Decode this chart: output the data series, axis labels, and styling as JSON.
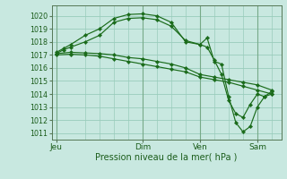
{
  "background_color": "#c8e8e0",
  "grid_color": "#99ccbb",
  "line_color": "#1a6b1a",
  "marker_color": "#1a6b1a",
  "xlabel": "Pression niveau de la mer( hPa )",
  "ylim": [
    1010.5,
    1020.8
  ],
  "yticks": [
    1011,
    1012,
    1013,
    1014,
    1015,
    1016,
    1017,
    1018,
    1019,
    1020
  ],
  "xtick_labels": [
    "Jeu",
    "Dim",
    "Ven",
    "Sam"
  ],
  "xtick_positions": [
    2,
    38,
    62,
    86
  ],
  "xlim": [
    0,
    96
  ],
  "vlines": [
    2,
    14,
    20,
    26,
    32,
    38,
    44,
    50,
    56,
    62,
    68,
    74,
    80,
    86,
    92
  ],
  "lines": [
    {
      "x": [
        2,
        5,
        8,
        14,
        20,
        26,
        32,
        38,
        44,
        50,
        56,
        62,
        65,
        68,
        71,
        74,
        77,
        80,
        83,
        86,
        89,
        92
      ],
      "y": [
        1017.2,
        1017.5,
        1017.8,
        1018.5,
        1019.0,
        1019.8,
        1020.1,
        1020.15,
        1020.0,
        1019.5,
        1018.0,
        1017.8,
        1018.3,
        1016.5,
        1016.3,
        1013.8,
        1011.8,
        1011.1,
        1011.5,
        1013.0,
        1013.8,
        1014.0
      ]
    },
    {
      "x": [
        2,
        5,
        8,
        14,
        20,
        26,
        32,
        38,
        44,
        50,
        56,
        62,
        65,
        68,
        71,
        74,
        77,
        80,
        83,
        86,
        89,
        92
      ],
      "y": [
        1017.1,
        1017.4,
        1017.6,
        1018.0,
        1018.5,
        1019.5,
        1019.8,
        1019.85,
        1019.7,
        1019.2,
        1018.1,
        1017.8,
        1017.6,
        1016.6,
        1015.5,
        1013.5,
        1012.5,
        1012.2,
        1013.2,
        1014.0,
        1013.8,
        1014.2
      ]
    },
    {
      "x": [
        2,
        8,
        14,
        20,
        26,
        32,
        38,
        44,
        50,
        56,
        62,
        68,
        74,
        80,
        86,
        92
      ],
      "y": [
        1017.1,
        1017.2,
        1017.15,
        1017.1,
        1017.0,
        1016.8,
        1016.7,
        1016.5,
        1016.3,
        1016.0,
        1015.5,
        1015.3,
        1015.1,
        1014.9,
        1014.7,
        1014.3
      ]
    },
    {
      "x": [
        2,
        8,
        14,
        20,
        26,
        32,
        38,
        44,
        50,
        56,
        62,
        68,
        74,
        80,
        86,
        92
      ],
      "y": [
        1017.0,
        1017.05,
        1017.0,
        1016.9,
        1016.7,
        1016.5,
        1016.3,
        1016.1,
        1015.9,
        1015.7,
        1015.3,
        1015.1,
        1014.9,
        1014.6,
        1014.3,
        1014.0
      ]
    }
  ]
}
